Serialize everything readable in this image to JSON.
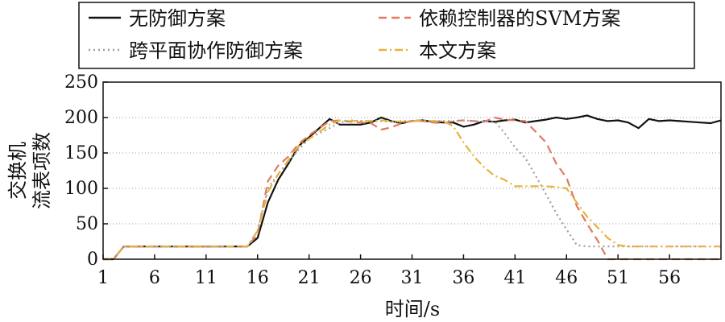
{
  "chart_data": {
    "type": "line",
    "xlabel": "时间/s",
    "ylabel_lines": [
      "交换机",
      "流表项数"
    ],
    "xlim": [
      1,
      61
    ],
    "ylim": [
      0,
      250
    ],
    "xticks": [
      1,
      6,
      11,
      16,
      21,
      26,
      31,
      36,
      41,
      46,
      51,
      56
    ],
    "yticks": [
      0,
      50,
      100,
      150,
      200,
      250
    ],
    "grid": "horizontal-dotted",
    "legend_position": "top",
    "series": [
      {
        "name": "无防御方案",
        "color": "#111111",
        "dash": "solid",
        "x": [
          1,
          2,
          3,
          4,
          5,
          6,
          7,
          8,
          9,
          10,
          11,
          12,
          13,
          14,
          15,
          16,
          17,
          18,
          19,
          20,
          21,
          22,
          23,
          24,
          25,
          26,
          27,
          28,
          29,
          30,
          31,
          32,
          33,
          34,
          35,
          36,
          37,
          38,
          39,
          40,
          41,
          42,
          43,
          44,
          45,
          46,
          47,
          48,
          49,
          50,
          51,
          52,
          53,
          54,
          55,
          56,
          57,
          58,
          59,
          60,
          61
        ],
        "y": [
          0,
          0,
          18,
          18,
          18,
          18,
          18,
          18,
          18,
          18,
          18,
          18,
          18,
          18,
          18,
          30,
          80,
          112,
          135,
          160,
          172,
          185,
          198,
          190,
          190,
          190,
          193,
          200,
          195,
          192,
          195,
          196,
          194,
          193,
          193,
          187,
          190,
          195,
          194,
          196,
          197,
          193,
          195,
          197,
          200,
          198,
          200,
          203,
          198,
          195,
          196,
          193,
          185,
          198,
          195,
          196,
          195,
          194,
          193,
          192,
          196
        ]
      },
      {
        "name": "依赖控制器的SVM方案",
        "color": "#e07a5f",
        "dash": "10,6",
        "x": [
          1,
          2,
          3,
          4,
          5,
          6,
          7,
          8,
          9,
          10,
          11,
          12,
          13,
          14,
          15,
          16,
          17,
          18,
          19,
          20,
          21,
          22,
          23,
          24,
          25,
          26,
          27,
          28,
          29,
          30,
          31,
          32,
          33,
          34,
          35,
          36,
          37,
          38,
          39,
          40,
          41,
          42,
          43,
          44,
          45,
          46,
          47,
          48,
          49,
          50,
          51,
          52,
          53,
          54,
          55,
          56,
          57,
          58,
          59,
          60,
          61
        ],
        "y": [
          0,
          0,
          18,
          18,
          18,
          18,
          18,
          18,
          18,
          18,
          18,
          18,
          18,
          18,
          18,
          35,
          110,
          132,
          145,
          163,
          175,
          185,
          195,
          196,
          194,
          193,
          192,
          183,
          186,
          192,
          195,
          195,
          193,
          192,
          195,
          196,
          195,
          194,
          200,
          197,
          196,
          195,
          180,
          165,
          135,
          115,
          75,
          50,
          27,
          0,
          0,
          0,
          0,
          0,
          0,
          0,
          0,
          0,
          0,
          0,
          0
        ]
      },
      {
        "name": "跨平面协作防御方案",
        "color": "#9e9e9e",
        "dash": "2,4",
        "x": [
          1,
          2,
          3,
          4,
          5,
          6,
          7,
          8,
          9,
          10,
          11,
          12,
          13,
          14,
          15,
          16,
          17,
          18,
          19,
          20,
          21,
          22,
          23,
          24,
          25,
          26,
          27,
          28,
          29,
          30,
          31,
          32,
          33,
          34,
          35,
          36,
          37,
          38,
          39,
          40,
          41,
          42,
          43,
          44,
          45,
          46,
          47,
          48,
          49,
          50,
          51,
          52,
          53,
          54,
          55,
          56,
          57,
          58,
          59,
          60,
          61
        ],
        "y": [
          0,
          0,
          18,
          18,
          18,
          18,
          18,
          18,
          18,
          18,
          18,
          18,
          18,
          18,
          18,
          40,
          100,
          120,
          138,
          155,
          170,
          178,
          185,
          193,
          196,
          195,
          195,
          195,
          194,
          195,
          195,
          195,
          195,
          195,
          195,
          196,
          195,
          194,
          195,
          178,
          158,
          143,
          118,
          92,
          65,
          42,
          20,
          18,
          18,
          18,
          18,
          18,
          18,
          18,
          18,
          18,
          18,
          18,
          18,
          18,
          18
        ]
      },
      {
        "name": "本文方案",
        "color": "#e8b33a",
        "dash": "10,4,2,4",
        "x": [
          1,
          2,
          3,
          4,
          5,
          6,
          7,
          8,
          9,
          10,
          11,
          12,
          13,
          14,
          15,
          16,
          17,
          18,
          19,
          20,
          21,
          22,
          23,
          24,
          25,
          26,
          27,
          28,
          29,
          30,
          31,
          32,
          33,
          34,
          35,
          36,
          37,
          38,
          39,
          40,
          41,
          42,
          43,
          44,
          45,
          46,
          47,
          48,
          49,
          50,
          51,
          52,
          53,
          54,
          55,
          56,
          57,
          58,
          59,
          60,
          61
        ],
        "y": [
          0,
          0,
          18,
          18,
          18,
          18,
          18,
          18,
          18,
          18,
          18,
          18,
          18,
          18,
          18,
          40,
          95,
          120,
          140,
          160,
          170,
          180,
          190,
          196,
          195,
          195,
          195,
          196,
          195,
          194,
          195,
          196,
          195,
          195,
          188,
          165,
          145,
          130,
          118,
          112,
          103,
          103,
          103,
          103,
          102,
          100,
          80,
          60,
          45,
          30,
          20,
          18,
          18,
          18,
          18,
          18,
          18,
          18,
          18,
          18,
          18
        ]
      }
    ]
  }
}
